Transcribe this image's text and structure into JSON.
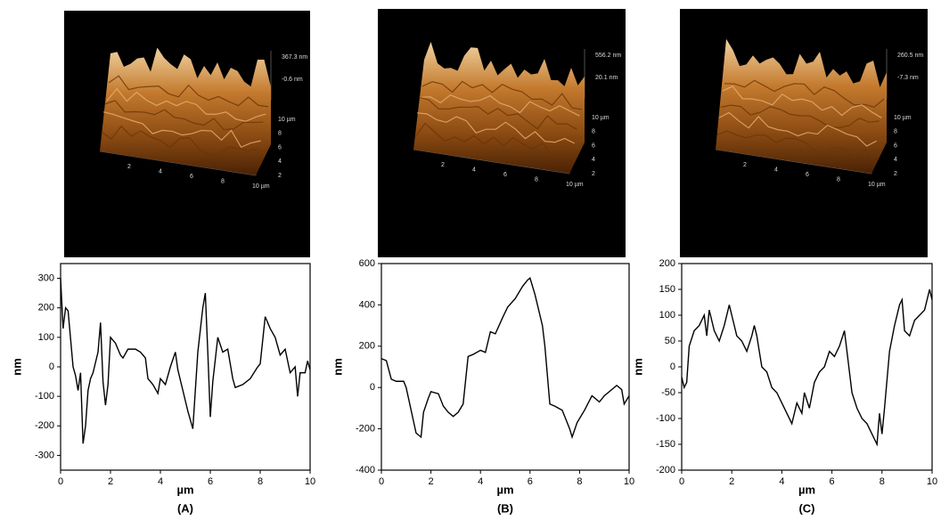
{
  "chart_data": [
    {
      "type": "line",
      "caption": "(A)",
      "x_label": "µm",
      "y_label": "nm",
      "color": "#000000",
      "x": [
        0,
        0.1,
        0.2,
        0.3,
        0.5,
        0.6,
        0.7,
        0.8,
        0.9,
        1.0,
        1.1,
        1.2,
        1.3,
        1.5,
        1.6,
        1.7,
        1.8,
        1.9,
        2.0,
        2.2,
        2.4,
        2.5,
        2.7,
        3.0,
        3.2,
        3.4,
        3.5,
        3.7,
        3.9,
        4.0,
        4.2,
        4.4,
        4.6,
        4.7,
        4.9,
        5.1,
        5.3,
        5.5,
        5.7,
        5.8,
        5.9,
        6.0,
        6.1,
        6.3,
        6.5,
        6.7,
        6.9,
        7.0,
        7.3,
        7.6,
        7.9,
        8.0,
        8.2,
        8.4,
        8.6,
        8.8,
        9.0,
        9.2,
        9.4,
        9.5,
        9.6,
        9.8,
        9.9,
        10
      ],
      "values": [
        300,
        130,
        200,
        190,
        0,
        -30,
        -80,
        -20,
        -260,
        -200,
        -80,
        -40,
        -20,
        50,
        150,
        -50,
        -130,
        -60,
        100,
        80,
        40,
        30,
        60,
        60,
        50,
        30,
        -40,
        -60,
        -90,
        -40,
        -60,
        0,
        50,
        -10,
        -80,
        -150,
        -210,
        50,
        200,
        250,
        50,
        -170,
        -50,
        100,
        50,
        60,
        -40,
        -70,
        -60,
        -40,
        0,
        10,
        170,
        130,
        100,
        40,
        60,
        -20,
        0,
        -100,
        -20,
        -20,
        20,
        -10
      ],
      "xlim": [
        0,
        10
      ],
      "xticks": [
        0,
        2,
        4,
        6,
        8,
        10
      ],
      "ylim": [
        -350,
        350
      ],
      "yticks": [
        -300,
        -200,
        -100,
        0,
        100,
        200,
        300
      ]
    },
    {
      "type": "line",
      "caption": "(B)",
      "x_label": "µm",
      "y_label": "nm",
      "color": "#000000",
      "x": [
        0,
        0.2,
        0.4,
        0.6,
        0.9,
        1.0,
        1.2,
        1.4,
        1.6,
        1.7,
        1.9,
        2.0,
        2.3,
        2.5,
        2.7,
        2.9,
        3.1,
        3.3,
        3.5,
        3.7,
        4.0,
        4.2,
        4.4,
        4.6,
        4.9,
        5.1,
        5.4,
        5.7,
        5.9,
        6.0,
        6.2,
        6.5,
        6.6,
        6.8,
        7.0,
        7.3,
        7.6,
        7.7,
        7.9,
        8.2,
        8.5,
        8.8,
        9.0,
        9.3,
        9.5,
        9.7,
        9.8,
        10
      ],
      "values": [
        140,
        130,
        40,
        30,
        30,
        0,
        -110,
        -220,
        -240,
        -120,
        -50,
        -20,
        -30,
        -90,
        -120,
        -140,
        -120,
        -80,
        150,
        160,
        180,
        170,
        270,
        260,
        340,
        390,
        430,
        490,
        520,
        530,
        450,
        300,
        200,
        -80,
        -90,
        -110,
        -200,
        -240,
        -170,
        -110,
        -40,
        -70,
        -40,
        -10,
        10,
        -10,
        -80,
        -40
      ],
      "xlim": [
        0,
        10
      ],
      "xticks": [
        0,
        2,
        4,
        6,
        8,
        10
      ],
      "ylim": [
        -400,
        600
      ],
      "yticks": [
        -400,
        -200,
        0,
        200,
        400,
        600
      ]
    },
    {
      "type": "line",
      "caption": "(C)",
      "x_label": "µm",
      "y_label": "nm",
      "color": "#000000",
      "x": [
        0,
        0.1,
        0.2,
        0.3,
        0.5,
        0.7,
        0.9,
        1.0,
        1.1,
        1.3,
        1.5,
        1.7,
        1.9,
        2.0,
        2.2,
        2.4,
        2.6,
        2.8,
        2.9,
        3.0,
        3.2,
        3.4,
        3.6,
        3.8,
        4.0,
        4.2,
        4.4,
        4.6,
        4.8,
        4.9,
        5.1,
        5.3,
        5.5,
        5.7,
        5.9,
        6.1,
        6.3,
        6.5,
        6.6,
        6.8,
        7.0,
        7.2,
        7.4,
        7.6,
        7.8,
        7.9,
        8.0,
        8.1,
        8.3,
        8.5,
        8.7,
        8.8,
        8.9,
        9.1,
        9.3,
        9.5,
        9.7,
        9.9,
        10
      ],
      "values": [
        -20,
        -40,
        -30,
        40,
        70,
        80,
        100,
        60,
        110,
        70,
        50,
        80,
        120,
        100,
        60,
        50,
        30,
        60,
        80,
        60,
        0,
        -10,
        -40,
        -50,
        -70,
        -90,
        -110,
        -70,
        -90,
        -50,
        -80,
        -30,
        -10,
        0,
        30,
        20,
        40,
        70,
        30,
        -50,
        -80,
        -100,
        -110,
        -130,
        -150,
        -90,
        -130,
        -80,
        30,
        80,
        120,
        130,
        70,
        60,
        90,
        100,
        110,
        150,
        130
      ],
      "xlim": [
        0,
        10
      ],
      "xticks": [
        0,
        2,
        4,
        6,
        8,
        10
      ],
      "ylim": [
        -200,
        200
      ],
      "yticks": [
        -200,
        -150,
        -100,
        -50,
        0,
        50,
        100,
        150,
        200
      ]
    }
  ],
  "afm_images": [
    {
      "z_labels": [
        "367.3 nm",
        "-0.6 nm"
      ],
      "x_labels": [
        "2",
        "4",
        "6",
        "8",
        "10 µm"
      ],
      "y_labels": [
        "10 µm",
        "8",
        "6",
        "4",
        "2"
      ]
    },
    {
      "z_labels": [
        "556.2 nm",
        "20.1 nm"
      ],
      "x_labels": [
        "2",
        "4",
        "6",
        "8",
        "10 µm"
      ],
      "y_labels": [
        "10 µm",
        "8",
        "6",
        "4",
        "2"
      ]
    },
    {
      "z_labels": [
        "260.5 nm",
        "-7.3 nm"
      ],
      "x_labels": [
        "2",
        "4",
        "6",
        "8",
        "10 µm"
      ],
      "y_labels": [
        "10 µm",
        "8",
        "6",
        "4",
        "2"
      ]
    }
  ]
}
